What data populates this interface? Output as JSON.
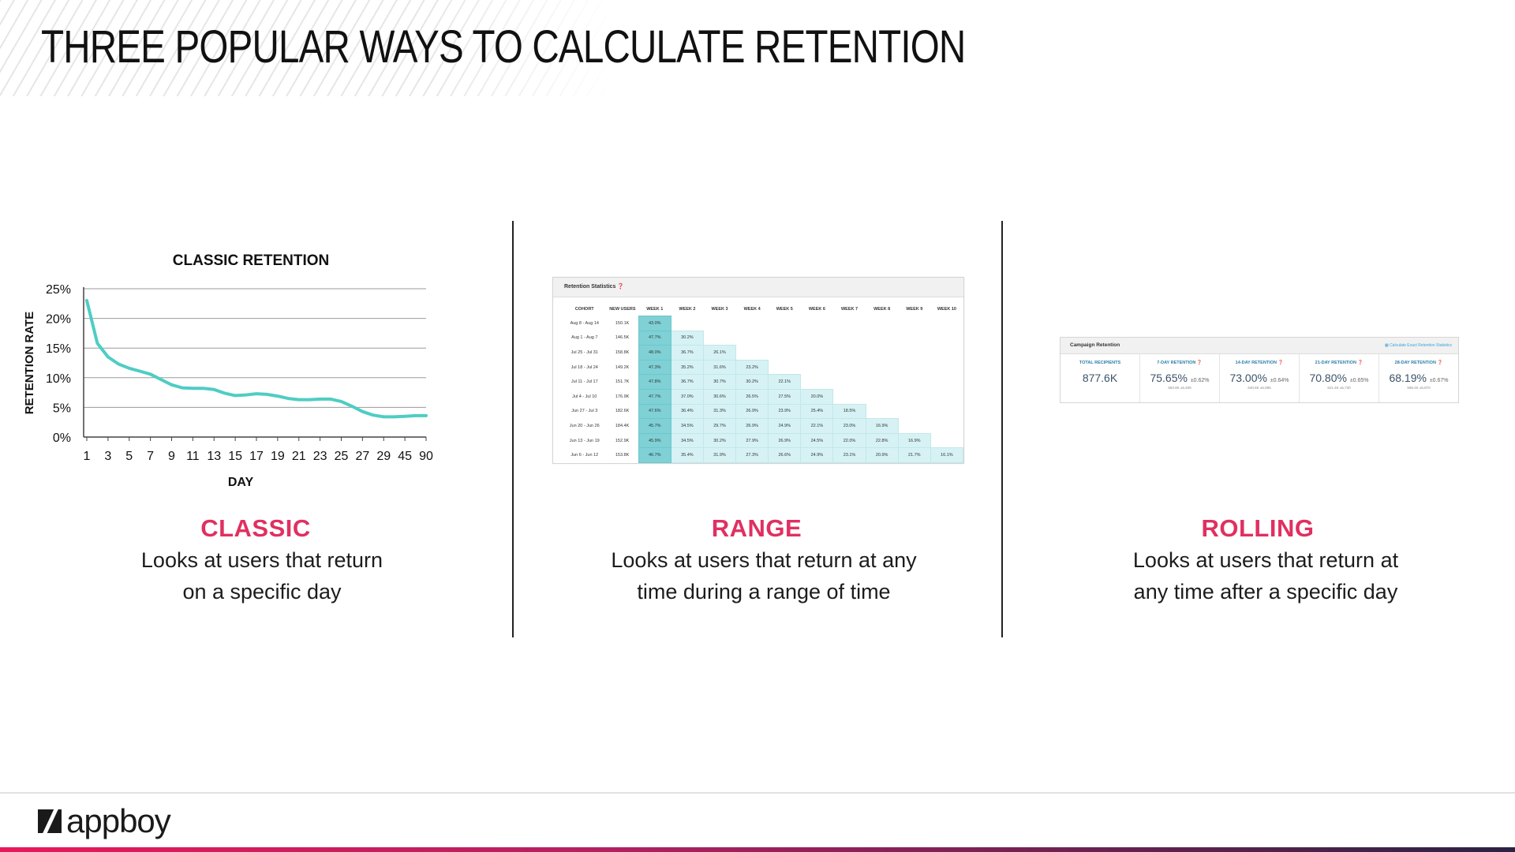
{
  "title": "THREE POPULAR WAYS TO CALCULATE RETENTION",
  "classic": {
    "heading": "CLASSIC",
    "desc_line1": "Looks at users that return",
    "desc_line2": "on a specific day"
  },
  "range": {
    "heading": "RANGE",
    "desc_line1": "Looks at users that return at any",
    "desc_line2": "time during a range of time",
    "table": {
      "header": "Retention Statistics ❓",
      "columns": [
        "COHORT",
        "NEW USERS",
        "WEEK 1",
        "WEEK 2",
        "WEEK 3",
        "WEEK 4",
        "WEEK 5",
        "WEEK 6",
        "WEEK 7",
        "WEEK 8",
        "WEEK 9",
        "WEEK 10"
      ],
      "rows": [
        [
          "Aug 8 - Aug 14",
          "150.1K",
          "43.0%"
        ],
        [
          "Aug 1 - Aug 7",
          "146.5K",
          "47.7%",
          "30.2%"
        ],
        [
          "Jul 25 - Jul 31",
          "158.8K",
          "48.0%",
          "36.7%",
          "26.1%"
        ],
        [
          "Jul 18 - Jul 24",
          "149.2K",
          "47.3%",
          "35.2%",
          "31.6%",
          "23.2%"
        ],
        [
          "Jul 11 - Jul 17",
          "151.7K",
          "47.8%",
          "36.7%",
          "30.7%",
          "30.2%",
          "22.1%"
        ],
        [
          "Jul 4 - Jul 10",
          "176.9K",
          "47.7%",
          "37.0%",
          "30.6%",
          "26.5%",
          "27.5%",
          "20.0%"
        ],
        [
          "Jun 27 - Jul 3",
          "182.6K",
          "47.6%",
          "36.4%",
          "31.3%",
          "26.9%",
          "23.9%",
          "25.4%",
          "18.5%"
        ],
        [
          "Jun 20 - Jun 26",
          "184.4K",
          "45.7%",
          "34.5%",
          "29.7%",
          "26.9%",
          "24.9%",
          "22.1%",
          "23.0%",
          "16.9%"
        ],
        [
          "Jun 13 - Jun 19",
          "152.9K",
          "45.9%",
          "34.5%",
          "30.2%",
          "27.9%",
          "26.9%",
          "24.5%",
          "22.0%",
          "22.8%",
          "16.9%"
        ],
        [
          "Jun 6 - Jun 12",
          "153.8K",
          "46.7%",
          "35.4%",
          "31.9%",
          "27.3%",
          "26.6%",
          "24.9%",
          "23.1%",
          "20.9%",
          "21.7%",
          "16.1%"
        ]
      ]
    }
  },
  "rolling": {
    "heading": "ROLLING",
    "desc_line1": "Looks at users that return at",
    "desc_line2": "any time after a specific day",
    "card": {
      "header": "Campaign Retention",
      "link": "▦ Calculate Exact Retention Statistics",
      "cells": [
        {
          "label": "TOTAL RECIPIENTS",
          "value": "877.6K",
          "pm": "",
          "sub": ""
        },
        {
          "label": "7-DAY RETENTION ❓",
          "value": "75.65%",
          "pm": "±0.62%",
          "sub": "663.9K ±5,409"
        },
        {
          "label": "14-DAY RETENTION ❓",
          "value": "73.00%",
          "pm": "±0.64%",
          "sub": "640.6K ±5,595"
        },
        {
          "label": "21-DAY RETENTION ❓",
          "value": "70.80%",
          "pm": "±0.65%",
          "sub": "621.4K ±5,730"
        },
        {
          "label": "28-DAY RETENTION ❓",
          "value": "68.19%",
          "pm": "±0.67%",
          "sub": "598.4K ±5,870"
        }
      ]
    }
  },
  "chart_data": {
    "type": "line",
    "title": "CLASSIC RETENTION",
    "xlabel": "DAY",
    "ylabel": "RETENTION RATE",
    "categories": [
      "1",
      "3",
      "5",
      "7",
      "9",
      "11",
      "13",
      "15",
      "17",
      "19",
      "21",
      "23",
      "25",
      "27",
      "29",
      "45",
      "90"
    ],
    "ylim": [
      0,
      25
    ],
    "yticks": [
      "0%",
      "5%",
      "10%",
      "15%",
      "20%",
      "25%"
    ],
    "ytick_values": [
      0,
      5,
      10,
      15,
      20,
      25
    ],
    "series": [
      {
        "name": "Retention",
        "color": "#4ecdc4",
        "x": [
          0,
          0.5,
          1,
          1.5,
          2,
          2.5,
          3,
          3.5,
          4,
          4.5,
          5,
          5.5,
          6,
          6.5,
          7,
          7.5,
          8,
          8.5,
          9,
          9.5,
          10,
          10.5,
          11,
          11.5,
          12,
          12.5,
          13,
          13.5,
          14,
          14.5,
          15,
          15.5,
          16
        ],
        "y": [
          23,
          15.8,
          13.5,
          12.3,
          11.6,
          11.1,
          10.6,
          9.7,
          8.8,
          8.3,
          8.2,
          8.2,
          8.0,
          7.4,
          7.0,
          7.1,
          7.3,
          7.2,
          6.9,
          6.5,
          6.3,
          6.3,
          6.4,
          6.4,
          6.0,
          5.2,
          4.3,
          3.7,
          3.4,
          3.4,
          3.5,
          3.6,
          3.6
        ]
      }
    ],
    "grid": true
  }
}
